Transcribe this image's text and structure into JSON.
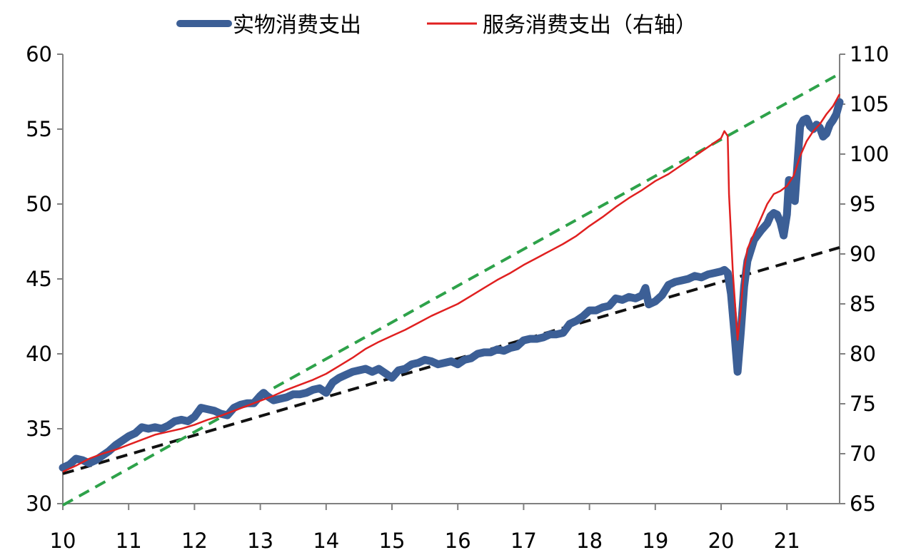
{
  "chart_data": {
    "type": "line",
    "title": "",
    "xlabel": "",
    "ylabel_left": "",
    "ylabel_right": "",
    "legend_position": "top",
    "x_ticks": [
      "10",
      "11",
      "12",
      "13",
      "14",
      "15",
      "16",
      "17",
      "18",
      "19",
      "20",
      "21"
    ],
    "x_range": [
      10,
      21.8
    ],
    "y_left": {
      "min": 30,
      "max": 60,
      "ticks": [
        "30",
        "35",
        "40",
        "45",
        "50",
        "55",
        "60"
      ]
    },
    "y_right": {
      "min": 65,
      "max": 110,
      "ticks": [
        "65",
        "70",
        "75",
        "80",
        "85",
        "90",
        "95",
        "100",
        "105",
        "110"
      ]
    },
    "series": [
      {
        "name": "实物消费支出",
        "axis": "left",
        "color": "#3c5f96",
        "points": [
          [
            10.0,
            32.4
          ],
          [
            10.1,
            32.6
          ],
          [
            10.2,
            33.0
          ],
          [
            10.3,
            32.9
          ],
          [
            10.4,
            32.7
          ],
          [
            10.5,
            32.9
          ],
          [
            10.6,
            33.2
          ],
          [
            10.7,
            33.5
          ],
          [
            10.8,
            33.9
          ],
          [
            10.9,
            34.2
          ],
          [
            11.0,
            34.5
          ],
          [
            11.1,
            34.7
          ],
          [
            11.2,
            35.1
          ],
          [
            11.3,
            35.0
          ],
          [
            11.4,
            35.1
          ],
          [
            11.5,
            35.0
          ],
          [
            11.6,
            35.2
          ],
          [
            11.7,
            35.5
          ],
          [
            11.8,
            35.6
          ],
          [
            11.9,
            35.5
          ],
          [
            12.0,
            35.8
          ],
          [
            12.1,
            36.4
          ],
          [
            12.2,
            36.3
          ],
          [
            12.3,
            36.2
          ],
          [
            12.4,
            36.0
          ],
          [
            12.5,
            35.9
          ],
          [
            12.6,
            36.4
          ],
          [
            12.7,
            36.6
          ],
          [
            12.8,
            36.7
          ],
          [
            12.9,
            36.7
          ],
          [
            13.0,
            37.2
          ],
          [
            13.05,
            37.4
          ],
          [
            13.1,
            37.2
          ],
          [
            13.2,
            36.9
          ],
          [
            13.3,
            37.0
          ],
          [
            13.4,
            37.1
          ],
          [
            13.5,
            37.3
          ],
          [
            13.6,
            37.3
          ],
          [
            13.7,
            37.4
          ],
          [
            13.8,
            37.6
          ],
          [
            13.9,
            37.7
          ],
          [
            14.0,
            37.4
          ],
          [
            14.1,
            38.1
          ],
          [
            14.2,
            38.4
          ],
          [
            14.3,
            38.6
          ],
          [
            14.4,
            38.8
          ],
          [
            14.5,
            38.9
          ],
          [
            14.6,
            39.0
          ],
          [
            14.7,
            38.8
          ],
          [
            14.8,
            39.0
          ],
          [
            14.9,
            38.7
          ],
          [
            15.0,
            38.4
          ],
          [
            15.1,
            38.9
          ],
          [
            15.2,
            39.0
          ],
          [
            15.3,
            39.3
          ],
          [
            15.4,
            39.4
          ],
          [
            15.5,
            39.6
          ],
          [
            15.6,
            39.5
          ],
          [
            15.7,
            39.3
          ],
          [
            15.8,
            39.4
          ],
          [
            15.9,
            39.5
          ],
          [
            16.0,
            39.3
          ],
          [
            16.1,
            39.6
          ],
          [
            16.2,
            39.7
          ],
          [
            16.3,
            40.0
          ],
          [
            16.4,
            40.1
          ],
          [
            16.5,
            40.1
          ],
          [
            16.6,
            40.3
          ],
          [
            16.7,
            40.2
          ],
          [
            16.8,
            40.4
          ],
          [
            16.9,
            40.5
          ],
          [
            17.0,
            40.9
          ],
          [
            17.1,
            41.0
          ],
          [
            17.2,
            41.0
          ],
          [
            17.3,
            41.1
          ],
          [
            17.4,
            41.3
          ],
          [
            17.5,
            41.3
          ],
          [
            17.6,
            41.4
          ],
          [
            17.7,
            42.0
          ],
          [
            17.8,
            42.2
          ],
          [
            17.9,
            42.5
          ],
          [
            18.0,
            42.9
          ],
          [
            18.1,
            42.9
          ],
          [
            18.2,
            43.1
          ],
          [
            18.3,
            43.2
          ],
          [
            18.4,
            43.7
          ],
          [
            18.5,
            43.6
          ],
          [
            18.6,
            43.8
          ],
          [
            18.7,
            43.7
          ],
          [
            18.8,
            43.9
          ],
          [
            18.85,
            44.4
          ],
          [
            18.9,
            43.3
          ],
          [
            19.0,
            43.5
          ],
          [
            19.1,
            43.9
          ],
          [
            19.2,
            44.6
          ],
          [
            19.3,
            44.8
          ],
          [
            19.4,
            44.9
          ],
          [
            19.5,
            45.0
          ],
          [
            19.6,
            45.2
          ],
          [
            19.7,
            45.1
          ],
          [
            19.8,
            45.3
          ],
          [
            19.9,
            45.4
          ],
          [
            20.0,
            45.5
          ],
          [
            20.05,
            45.6
          ],
          [
            20.1,
            45.4
          ],
          [
            20.15,
            44.0
          ],
          [
            20.2,
            41.5
          ],
          [
            20.25,
            38.8
          ],
          [
            20.3,
            41.5
          ],
          [
            20.35,
            44.5
          ],
          [
            20.4,
            46.2
          ],
          [
            20.5,
            47.6
          ],
          [
            20.6,
            48.2
          ],
          [
            20.7,
            48.7
          ],
          [
            20.75,
            49.2
          ],
          [
            20.8,
            49.4
          ],
          [
            20.85,
            49.3
          ],
          [
            20.9,
            48.8
          ],
          [
            20.95,
            47.9
          ],
          [
            21.0,
            49.3
          ],
          [
            21.03,
            51.6
          ],
          [
            21.08,
            50.8
          ],
          [
            21.12,
            50.2
          ],
          [
            21.2,
            55.2
          ],
          [
            21.25,
            55.6
          ],
          [
            21.3,
            55.7
          ],
          [
            21.35,
            55.2
          ],
          [
            21.4,
            55.0
          ],
          [
            21.45,
            55.3
          ],
          [
            21.5,
            55.1
          ],
          [
            21.55,
            54.5
          ],
          [
            21.6,
            54.7
          ],
          [
            21.65,
            55.3
          ],
          [
            21.7,
            55.6
          ],
          [
            21.75,
            56.0
          ],
          [
            21.8,
            56.8
          ]
        ]
      },
      {
        "name": "服务消费支出（右轴）",
        "axis": "right",
        "color": "#e02020",
        "points": [
          [
            10.0,
            68.2
          ],
          [
            10.2,
            68.8
          ],
          [
            10.4,
            69.5
          ],
          [
            10.6,
            70.0
          ],
          [
            10.8,
            70.4
          ],
          [
            11.0,
            70.9
          ],
          [
            11.2,
            71.4
          ],
          [
            11.4,
            71.9
          ],
          [
            11.6,
            72.2
          ],
          [
            11.8,
            72.5
          ],
          [
            12.0,
            72.9
          ],
          [
            12.2,
            73.4
          ],
          [
            12.4,
            73.8
          ],
          [
            12.6,
            74.3
          ],
          [
            12.8,
            74.8
          ],
          [
            13.0,
            75.3
          ],
          [
            13.2,
            75.8
          ],
          [
            13.4,
            76.4
          ],
          [
            13.6,
            76.9
          ],
          [
            13.8,
            77.4
          ],
          [
            14.0,
            78.0
          ],
          [
            14.2,
            78.8
          ],
          [
            14.4,
            79.6
          ],
          [
            14.6,
            80.5
          ],
          [
            14.8,
            81.2
          ],
          [
            15.0,
            81.8
          ],
          [
            15.2,
            82.4
          ],
          [
            15.4,
            83.1
          ],
          [
            15.6,
            83.8
          ],
          [
            15.8,
            84.4
          ],
          [
            16.0,
            85.0
          ],
          [
            16.2,
            85.8
          ],
          [
            16.4,
            86.6
          ],
          [
            16.6,
            87.4
          ],
          [
            16.8,
            88.1
          ],
          [
            17.0,
            88.9
          ],
          [
            17.2,
            89.6
          ],
          [
            17.4,
            90.3
          ],
          [
            17.6,
            91.0
          ],
          [
            17.8,
            91.8
          ],
          [
            18.0,
            92.8
          ],
          [
            18.2,
            93.7
          ],
          [
            18.4,
            94.7
          ],
          [
            18.6,
            95.6
          ],
          [
            18.8,
            96.4
          ],
          [
            19.0,
            97.3
          ],
          [
            19.2,
            98.0
          ],
          [
            19.4,
            98.9
          ],
          [
            19.6,
            99.8
          ],
          [
            19.8,
            100.7
          ],
          [
            20.0,
            101.6
          ],
          [
            20.05,
            102.3
          ],
          [
            20.1,
            101.8
          ],
          [
            20.12,
            96.0
          ],
          [
            20.18,
            88.0
          ],
          [
            20.25,
            81.4
          ],
          [
            20.3,
            84.5
          ],
          [
            20.35,
            88.5
          ],
          [
            20.4,
            90.5
          ],
          [
            20.5,
            92.0
          ],
          [
            20.6,
            93.5
          ],
          [
            20.7,
            95.0
          ],
          [
            20.8,
            96.0
          ],
          [
            20.9,
            96.3
          ],
          [
            21.0,
            96.8
          ],
          [
            21.1,
            97.8
          ],
          [
            21.2,
            99.8
          ],
          [
            21.3,
            101.3
          ],
          [
            21.4,
            102.3
          ],
          [
            21.5,
            103.0
          ],
          [
            21.6,
            104.0
          ],
          [
            21.7,
            104.8
          ],
          [
            21.8,
            106.0
          ]
        ]
      }
    ],
    "trend_lines": [
      {
        "axis": "left",
        "color": "#111111",
        "from": [
          10.0,
          32.0
        ],
        "to": [
          21.8,
          47.1
        ]
      },
      {
        "axis": "left",
        "color": "#2ea24a",
        "from": [
          10.0,
          29.9
        ],
        "to": [
          21.8,
          58.7
        ]
      }
    ]
  }
}
